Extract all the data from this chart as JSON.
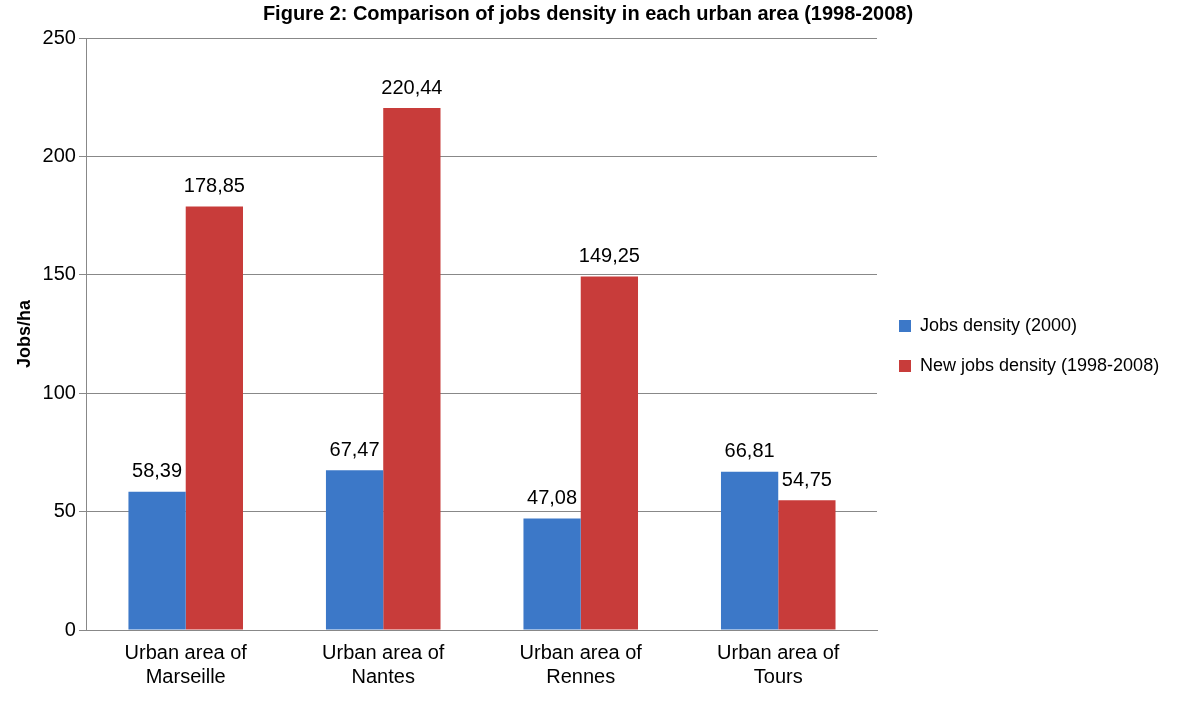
{
  "chart_data": {
    "type": "bar",
    "title": "Figure 2: Comparison of jobs density in each urban area (1998-2008)",
    "ylabel": "Jobs/ha",
    "categories": [
      "Urban area of Marseille",
      "Urban area of Nantes",
      "Urban area of Rennes",
      "Urban area of Tours"
    ],
    "series": [
      {
        "name": "Jobs density (2000)",
        "color": "#3c78c8",
        "values": [
          58.39,
          67.47,
          47.08,
          66.81
        ],
        "value_labels": [
          "58,39",
          "67,47",
          "47,08",
          "66,81"
        ]
      },
      {
        "name": "New jobs density (1998-2008)",
        "color": "#c83c3a",
        "values": [
          178.85,
          220.44,
          149.25,
          54.75
        ],
        "value_labels": [
          "178,85",
          "220,44",
          "149,25",
          "54,75"
        ]
      }
    ],
    "ylim": [
      0,
      250
    ],
    "yticks": [
      0,
      50,
      100,
      150,
      200,
      250
    ],
    "grid": "y",
    "legend": "right"
  }
}
